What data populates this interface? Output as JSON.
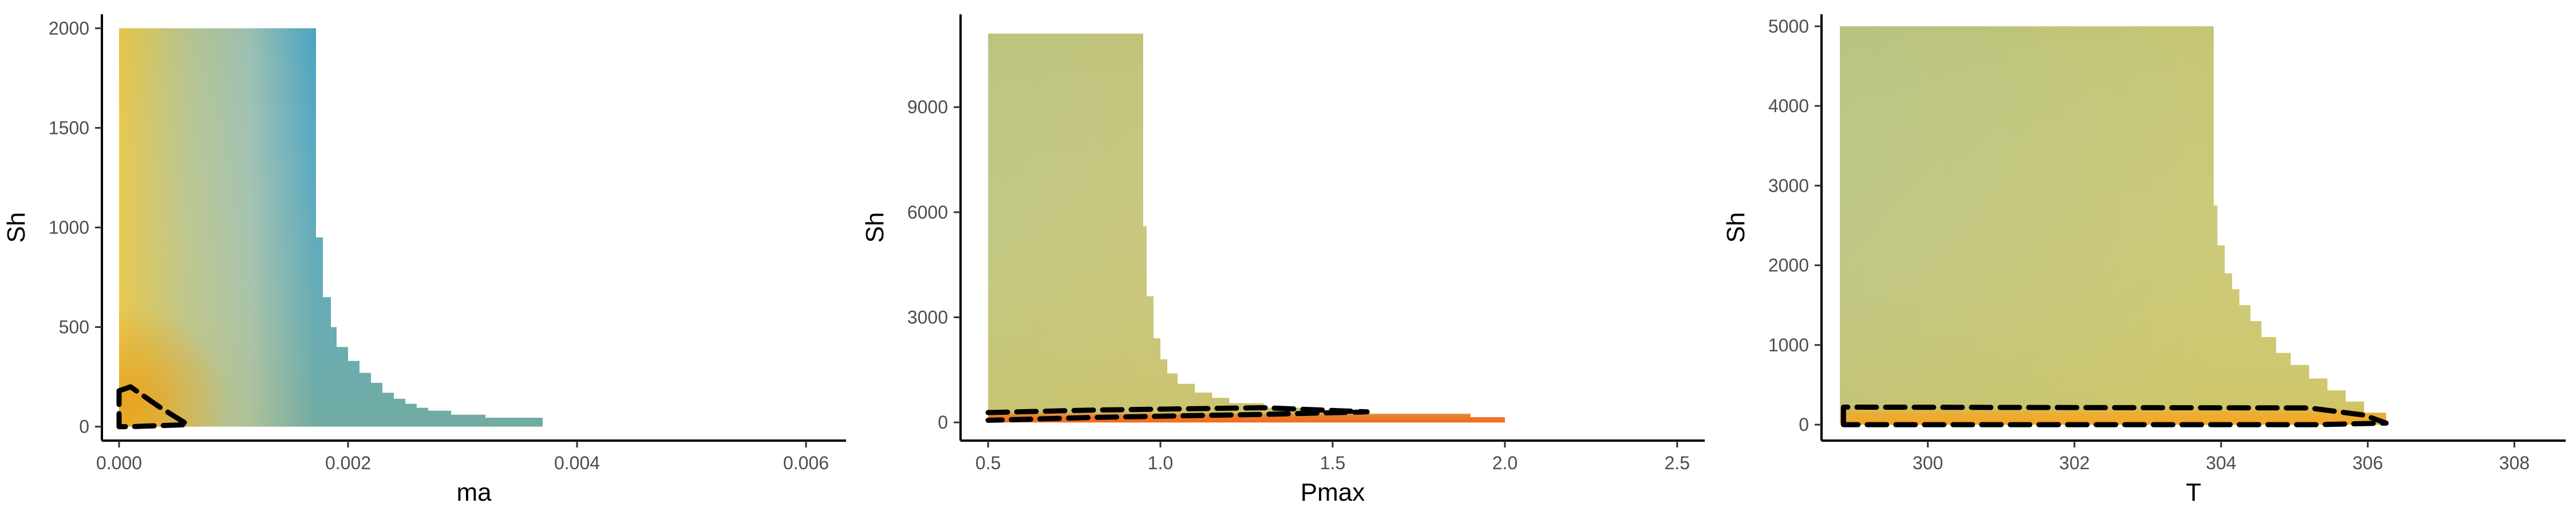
{
  "chart_data": [
    {
      "type": "heatmap",
      "title": "",
      "xlabel": "ma",
      "ylabel": "Sh",
      "xlim": [
        -0.00015,
        0.00635
      ],
      "ylim": [
        -70,
        2070
      ],
      "xticks": [
        0.0,
        0.002,
        0.004,
        0.006
      ],
      "xtick_labels": [
        "0.000",
        "0.002",
        "0.004",
        "0.006"
      ],
      "yticks": [
        0,
        500,
        1000,
        1500,
        2000
      ],
      "ytick_labels": [
        "0",
        "500",
        "1000",
        "1500",
        "2000"
      ],
      "region_x_min": 0.0,
      "region_y_max": 2000,
      "boundary": [
        [
          0.0,
          2000
        ],
        [
          0.00172,
          2000
        ],
        [
          0.00172,
          950
        ],
        [
          0.00178,
          950
        ],
        [
          0.00178,
          650
        ],
        [
          0.00185,
          650
        ],
        [
          0.00185,
          500
        ],
        [
          0.0019,
          500
        ],
        [
          0.0019,
          400
        ],
        [
          0.002,
          400
        ],
        [
          0.002,
          330
        ],
        [
          0.0021,
          330
        ],
        [
          0.0021,
          270
        ],
        [
          0.0022,
          270
        ],
        [
          0.0022,
          220
        ],
        [
          0.0023,
          220
        ],
        [
          0.0023,
          170
        ],
        [
          0.0024,
          170
        ],
        [
          0.0024,
          140
        ],
        [
          0.0025,
          140
        ],
        [
          0.0025,
          115
        ],
        [
          0.0026,
          115
        ],
        [
          0.0026,
          95
        ],
        [
          0.0027,
          95
        ],
        [
          0.0027,
          80
        ],
        [
          0.0029,
          80
        ],
        [
          0.0029,
          60
        ],
        [
          0.0032,
          60
        ],
        [
          0.0032,
          45
        ],
        [
          0.0037,
          45
        ],
        [
          0.0037,
          20
        ],
        [
          0.0037,
          0
        ],
        [
          0.0,
          0
        ]
      ],
      "hotspot": {
        "x": 0.0001,
        "y": 120,
        "color": "#e8a21e"
      },
      "gradient_colors": [
        "#e5c546",
        "#b7c38c",
        "#9bbfb2",
        "#4aa3c1"
      ],
      "contour": [
        [
          0.0,
          180
        ],
        [
          0.0001,
          200
        ],
        [
          0.00035,
          100
        ],
        [
          0.0006,
          10
        ],
        [
          0.0001,
          0
        ],
        [
          0.0,
          0
        ],
        [
          0.0,
          180
        ]
      ],
      "grid": false,
      "legend": "none"
    },
    {
      "type": "heatmap",
      "title": "",
      "xlabel": "Pmax",
      "ylabel": "Sh",
      "xlim": [
        0.42,
        2.58
      ],
      "ylim": [
        -520,
        11650
      ],
      "xticks": [
        0.5,
        1.0,
        1.5,
        2.0,
        2.5
      ],
      "xtick_labels": [
        "0.5",
        "1.0",
        "1.5",
        "2.0",
        "2.5"
      ],
      "yticks": [
        0,
        3000,
        6000,
        9000
      ],
      "ytick_labels": [
        "0",
        "3000",
        "6000",
        "9000"
      ],
      "region_x_min": 0.5,
      "region_y_max": 11100,
      "boundary": [
        [
          0.5,
          11100
        ],
        [
          0.95,
          11100
        ],
        [
          0.95,
          5600
        ],
        [
          0.96,
          5600
        ],
        [
          0.96,
          3600
        ],
        [
          0.98,
          3600
        ],
        [
          0.98,
          2400
        ],
        [
          1.0,
          2400
        ],
        [
          1.0,
          1800
        ],
        [
          1.02,
          1800
        ],
        [
          1.02,
          1400
        ],
        [
          1.05,
          1400
        ],
        [
          1.05,
          1100
        ],
        [
          1.1,
          1100
        ],
        [
          1.1,
          850
        ],
        [
          1.15,
          850
        ],
        [
          1.15,
          700
        ],
        [
          1.2,
          700
        ],
        [
          1.2,
          550
        ],
        [
          1.3,
          550
        ],
        [
          1.3,
          420
        ],
        [
          1.45,
          420
        ],
        [
          1.45,
          330
        ],
        [
          1.6,
          330
        ],
        [
          1.6,
          250
        ],
        [
          1.9,
          250
        ],
        [
          1.9,
          150
        ],
        [
          2.0,
          150
        ],
        [
          2.0,
          0
        ],
        [
          0.5,
          0
        ]
      ],
      "hotband": {
        "y_max": 300,
        "color": "#f26a1e"
      },
      "gradient_colors": [
        "#bbc47e",
        "#c2c37a"
      ],
      "contour": [
        [
          0.5,
          280
        ],
        [
          0.8,
          350
        ],
        [
          1.3,
          420
        ],
        [
          1.6,
          300
        ],
        [
          1.3,
          230
        ],
        [
          0.8,
          140
        ],
        [
          0.5,
          60
        ]
      ],
      "grid": false,
      "legend": "none"
    },
    {
      "type": "heatmap",
      "title": "",
      "xlabel": "T",
      "ylabel": "Sh",
      "xlim": [
        298.55,
        308.7
      ],
      "ylim": [
        -200,
        5150
      ],
      "xticks": [
        300,
        302,
        304,
        306,
        308
      ],
      "xtick_labels": [
        "300",
        "302",
        "304",
        "306",
        "308"
      ],
      "yticks": [
        0,
        1000,
        2000,
        3000,
        4000,
        5000
      ],
      "ytick_labels": [
        "0",
        "1000",
        "2000",
        "3000",
        "4000",
        "5000"
      ],
      "region_x_min": 298.8,
      "region_y_max": 5000,
      "boundary": [
        [
          298.8,
          5000
        ],
        [
          303.9,
          5000
        ],
        [
          303.9,
          2750
        ],
        [
          303.95,
          2750
        ],
        [
          303.95,
          2250
        ],
        [
          304.05,
          2250
        ],
        [
          304.05,
          1900
        ],
        [
          304.15,
          1900
        ],
        [
          304.15,
          1700
        ],
        [
          304.25,
          1700
        ],
        [
          304.25,
          1500
        ],
        [
          304.4,
          1500
        ],
        [
          304.4,
          1300
        ],
        [
          304.55,
          1300
        ],
        [
          304.55,
          1100
        ],
        [
          304.75,
          1100
        ],
        [
          304.75,
          900
        ],
        [
          304.95,
          900
        ],
        [
          304.95,
          750
        ],
        [
          305.2,
          750
        ],
        [
          305.2,
          580
        ],
        [
          305.45,
          580
        ],
        [
          305.45,
          430
        ],
        [
          305.7,
          430
        ],
        [
          305.7,
          290
        ],
        [
          305.95,
          290
        ],
        [
          305.95,
          150
        ],
        [
          306.25,
          150
        ],
        [
          306.25,
          0
        ],
        [
          298.8,
          0
        ]
      ],
      "hotband": {
        "y_max": 220,
        "color": "#f5a623"
      },
      "gradient_colors": [
        "#b8c382",
        "#c6c673"
      ],
      "contour": [
        [
          298.85,
          30
        ],
        [
          298.85,
          220
        ],
        [
          305.2,
          210
        ],
        [
          305.95,
          120
        ],
        [
          306.25,
          20
        ],
        [
          305.3,
          0
        ],
        [
          298.85,
          0
        ]
      ],
      "grid": false,
      "legend": "none"
    }
  ]
}
